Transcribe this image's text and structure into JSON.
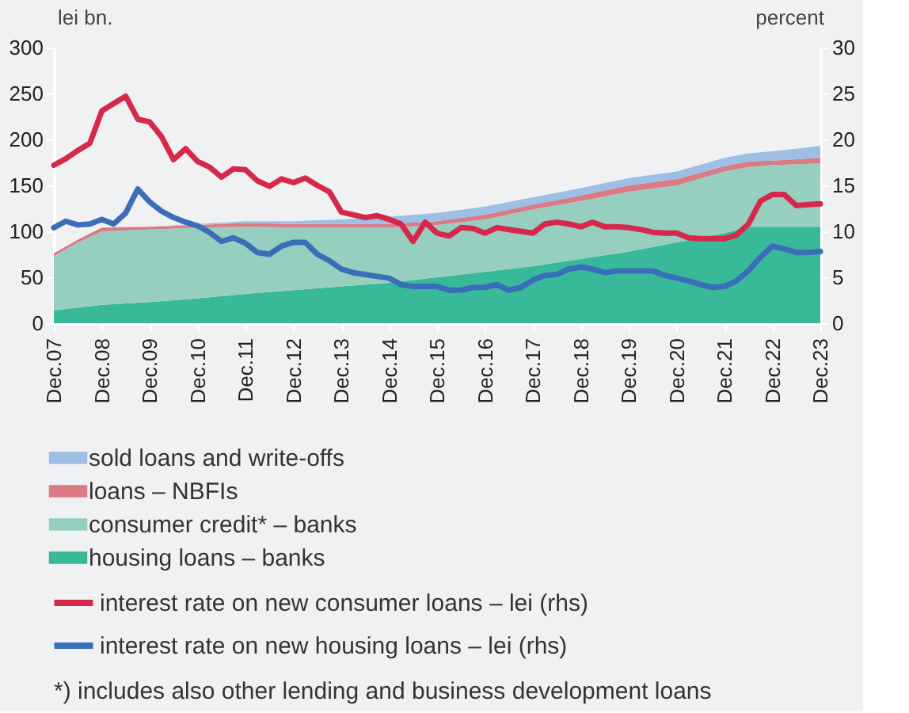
{
  "chart_data": {
    "type": "area",
    "stacked": true,
    "ylabel": "lei bn.",
    "y2label": "percent",
    "legend": "bottom",
    "grid": false,
    "x": [
      "2007-12",
      "2008-06",
      "2008-12",
      "2009-12",
      "2010-12",
      "2011-12",
      "2012-12",
      "2013-12",
      "2014-12",
      "2015-12",
      "2016-12",
      "2017-12",
      "2018-12",
      "2019-12",
      "2020-12",
      "2021-12",
      "2022-06",
      "2022-12",
      "2023-12"
    ],
    "xlim": [
      "2007-12",
      "2023-12"
    ],
    "xticks": [
      {
        "value": "2007-12",
        "label": "Dec.07"
      },
      {
        "value": "2008-12",
        "label": "Dec.08"
      },
      {
        "value": "2009-12",
        "label": "Dec.09"
      },
      {
        "value": "2010-12",
        "label": "Dec.10"
      },
      {
        "value": "2011-12",
        "label": "Dec.11"
      },
      {
        "value": "2012-12",
        "label": "Dec.12"
      },
      {
        "value": "2013-12",
        "label": "Dec.13"
      },
      {
        "value": "2014-12",
        "label": "Dec.14"
      },
      {
        "value": "2015-12",
        "label": "Dec.15"
      },
      {
        "value": "2016-12",
        "label": "Dec.16"
      },
      {
        "value": "2017-12",
        "label": "Dec.17"
      },
      {
        "value": "2018-12",
        "label": "Dec.18"
      },
      {
        "value": "2019-12",
        "label": "Dec.19"
      },
      {
        "value": "2020-12",
        "label": "Dec.20"
      },
      {
        "value": "2021-12",
        "label": "Dec.21"
      },
      {
        "value": "2022-12",
        "label": "Dec.22"
      },
      {
        "value": "2023-12",
        "label": "Dec.23"
      }
    ],
    "ylim": [
      0,
      300
    ],
    "yticks": [
      0,
      50,
      100,
      150,
      200,
      250,
      300
    ],
    "y2lim": [
      0,
      30
    ],
    "y2ticks": [
      0,
      5,
      10,
      15,
      20,
      25,
      30
    ],
    "series": [
      {
        "name": "housing loans – banks",
        "color": "#38b99a",
        "values": [
          14,
          17,
          20,
          23,
          27,
          32,
          36,
          40,
          44,
          50,
          56,
          62,
          70,
          78,
          88,
          98,
          105,
          105,
          105
        ]
      },
      {
        "name": "consumer credit* – banks",
        "color": "#96cfc0",
        "values": [
          59,
          71,
          80,
          79,
          77,
          73,
          68,
          64,
          60,
          57,
          57,
          62,
          63,
          65,
          62,
          67,
          65,
          67,
          69
        ]
      },
      {
        "name": "loans – NBFIs",
        "color": "#d97a84",
        "values": [
          3,
          3,
          4,
          3,
          3,
          4,
          4,
          4,
          4,
          4,
          5,
          5,
          6,
          7,
          7,
          6,
          6,
          5,
          6
        ]
      },
      {
        "name": "sold loans and write-offs",
        "color": "#9dbfe3",
        "values": [
          0,
          0,
          0,
          0,
          1,
          2,
          3,
          5,
          8,
          9,
          9,
          8,
          8,
          8,
          8,
          9,
          9,
          10,
          13
        ]
      },
      {
        "name": "interest rate on new consumer loans – lei (rhs)",
        "type": "line",
        "axis": "y2",
        "color": "#d6284b",
        "x": [
          "2007-12",
          "2008-03",
          "2008-06",
          "2008-09",
          "2008-12",
          "2009-03",
          "2009-06",
          "2009-09",
          "2009-12",
          "2010-03",
          "2010-06",
          "2010-09",
          "2010-12",
          "2011-03",
          "2011-06",
          "2011-09",
          "2011-12",
          "2012-03",
          "2012-06",
          "2012-09",
          "2012-12",
          "2013-03",
          "2013-06",
          "2013-09",
          "2013-12",
          "2014-03",
          "2014-06",
          "2014-09",
          "2014-12",
          "2015-03",
          "2015-06",
          "2015-09",
          "2015-12",
          "2016-03",
          "2016-06",
          "2016-09",
          "2016-12",
          "2017-03",
          "2017-06",
          "2017-09",
          "2017-12",
          "2018-03",
          "2018-06",
          "2018-09",
          "2018-12",
          "2019-03",
          "2019-06",
          "2019-09",
          "2019-12",
          "2020-03",
          "2020-06",
          "2020-09",
          "2020-12",
          "2021-03",
          "2021-06",
          "2021-09",
          "2021-12",
          "2022-03",
          "2022-06",
          "2022-09",
          "2022-12",
          "2023-03",
          "2023-06",
          "2023-09",
          "2023-12"
        ],
        "values": [
          17.2,
          17.9,
          18.8,
          19.6,
          23.1,
          23.9,
          24.7,
          22.2,
          21.9,
          20.3,
          17.8,
          19.0,
          17.6,
          17.0,
          15.9,
          16.8,
          16.7,
          15.5,
          14.9,
          15.7,
          15.3,
          15.8,
          15.0,
          14.3,
          12.1,
          11.8,
          11.5,
          11.7,
          11.3,
          10.8,
          8.9,
          11.0,
          9.8,
          9.5,
          10.4,
          10.3,
          9.8,
          10.4,
          10.2,
          10.0,
          9.8,
          10.8,
          11.0,
          10.8,
          10.5,
          11.0,
          10.5,
          10.5,
          10.4,
          10.2,
          9.9,
          9.8,
          9.8,
          9.3,
          9.2,
          9.2,
          9.2,
          9.6,
          10.8,
          13.3,
          14.0,
          14.0,
          12.8,
          12.9,
          13.0
        ]
      },
      {
        "name": "interest rate on new housing loans – lei (rhs)",
        "type": "line",
        "axis": "y2",
        "color": "#3a6eb8",
        "x": [
          "2007-12",
          "2008-03",
          "2008-06",
          "2008-09",
          "2008-12",
          "2009-03",
          "2009-06",
          "2009-09",
          "2009-12",
          "2010-03",
          "2010-06",
          "2010-09",
          "2010-12",
          "2011-03",
          "2011-06",
          "2011-09",
          "2011-12",
          "2012-03",
          "2012-06",
          "2012-09",
          "2012-12",
          "2013-03",
          "2013-06",
          "2013-09",
          "2013-12",
          "2014-03",
          "2014-06",
          "2014-09",
          "2014-12",
          "2015-03",
          "2015-06",
          "2015-09",
          "2015-12",
          "2016-03",
          "2016-06",
          "2016-09",
          "2016-12",
          "2017-03",
          "2017-06",
          "2017-09",
          "2017-12",
          "2018-03",
          "2018-06",
          "2018-09",
          "2018-12",
          "2019-03",
          "2019-06",
          "2019-09",
          "2019-12",
          "2020-03",
          "2020-06",
          "2020-09",
          "2020-12",
          "2021-03",
          "2021-06",
          "2021-09",
          "2021-12",
          "2022-03",
          "2022-06",
          "2022-09",
          "2022-12",
          "2023-03",
          "2023-06",
          "2023-09",
          "2023-12"
        ],
        "values": [
          10.4,
          11.1,
          10.7,
          10.8,
          11.3,
          10.8,
          12.0,
          14.6,
          13.2,
          12.2,
          11.5,
          11.0,
          10.6,
          9.9,
          8.9,
          9.3,
          8.7,
          7.7,
          7.5,
          8.4,
          8.8,
          8.8,
          7.5,
          6.8,
          5.9,
          5.5,
          5.3,
          5.1,
          4.9,
          4.2,
          4.0,
          4.0,
          4.0,
          3.6,
          3.6,
          3.9,
          3.9,
          4.2,
          3.6,
          3.9,
          4.7,
          5.2,
          5.3,
          5.9,
          6.1,
          5.9,
          5.5,
          5.7,
          5.7,
          5.7,
          5.7,
          5.2,
          4.9,
          4.6,
          4.2,
          3.9,
          4.0,
          4.6,
          5.7,
          7.2,
          8.4,
          8.1,
          7.7,
          7.7,
          7.8
        ]
      }
    ],
    "annotations": [
      "*) includes also other lending and business development loans"
    ]
  }
}
